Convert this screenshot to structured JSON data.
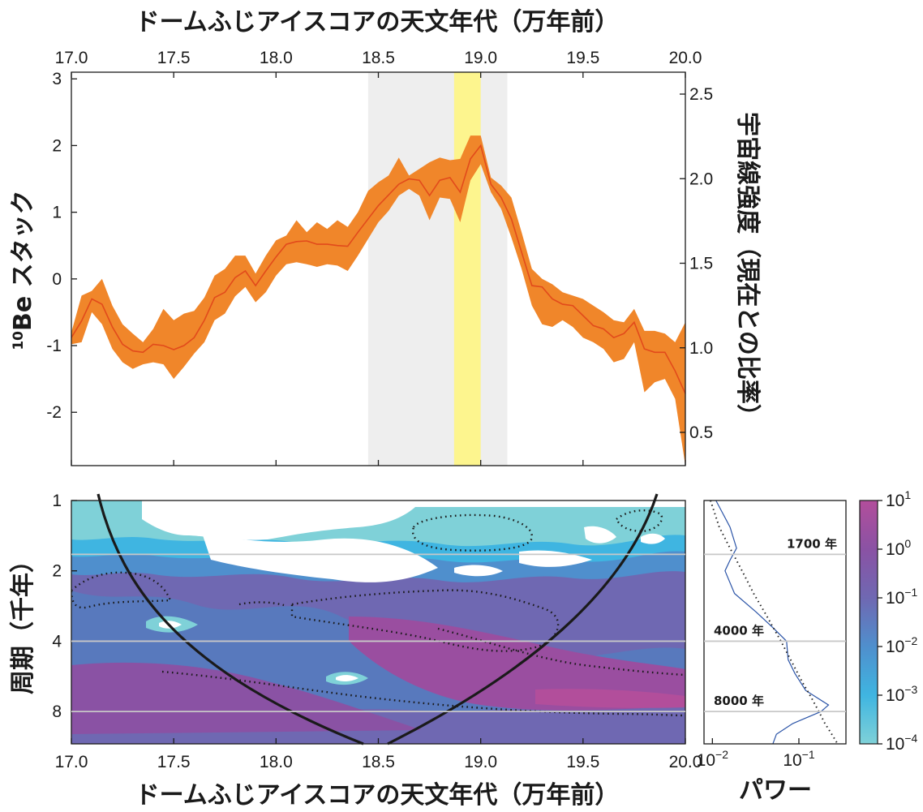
{
  "chart_data": [
    {
      "type": "area",
      "title": "ドームふじアイスコアの天文年代（万年前）",
      "xlabel": "ドームふじアイスコアの天文年代（万年前）",
      "ylabel": "10Be スタック",
      "ylabel_sup": "10",
      "ylabel_main": "Be スタック",
      "y2label": "宇宙線強度（現在との比率）",
      "xlim": [
        17.0,
        20.0
      ],
      "ylim": [
        -2.8,
        3.1
      ],
      "y2lim": [
        0.3,
        2.5
      ],
      "x_ticks": [
        "17.0",
        "17.5",
        "18.0",
        "18.5",
        "19.0",
        "19.5",
        "20.0"
      ],
      "y_ticks": [
        "3",
        "2",
        "1",
        "0",
        "-1",
        "-2"
      ],
      "y2_ticks": [
        "2.5",
        "2.0",
        "1.5",
        "1.0",
        "0.5"
      ],
      "y_tick_values": [
        3,
        2,
        1,
        0,
        -1,
        -2
      ],
      "y2_tick_values": [
        2.5,
        2.0,
        1.5,
        1.0,
        0.5
      ],
      "shaded_gray": [
        18.45,
        19.13
      ],
      "shaded_yellow": [
        18.87,
        19.0
      ],
      "line_color": "#e24a1b",
      "band_color": "#f0862a",
      "x": [
        17.0,
        17.05,
        17.1,
        17.15,
        17.2,
        17.25,
        17.3,
        17.35,
        17.4,
        17.45,
        17.5,
        17.55,
        17.6,
        17.65,
        17.7,
        17.75,
        17.8,
        17.85,
        17.9,
        17.95,
        18.0,
        18.05,
        18.1,
        18.15,
        18.2,
        18.25,
        18.3,
        18.35,
        18.4,
        18.45,
        18.5,
        18.55,
        18.6,
        18.65,
        18.7,
        18.75,
        18.8,
        18.85,
        18.9,
        18.95,
        19.0,
        19.05,
        19.1,
        19.15,
        19.2,
        19.25,
        19.3,
        19.35,
        19.4,
        19.45,
        19.5,
        19.55,
        19.6,
        19.65,
        19.7,
        19.75,
        19.8,
        19.85,
        19.9,
        19.95,
        20.0
      ],
      "series": [
        {
          "values": [
            -0.88,
            -0.63,
            -0.3,
            -0.38,
            -0.72,
            -0.98,
            -1.08,
            -1.1,
            -0.98,
            -1.0,
            -1.06,
            -1.0,
            -0.88,
            -0.62,
            -0.28,
            -0.2,
            0.02,
            0.12,
            -0.1,
            0.12,
            0.33,
            0.52,
            0.56,
            0.57,
            0.52,
            0.52,
            0.5,
            0.49,
            0.7,
            0.9,
            1.1,
            1.26,
            1.42,
            1.5,
            1.48,
            1.25,
            1.48,
            1.52,
            1.3,
            1.8,
            2.0,
            1.42,
            1.22,
            0.9,
            0.4,
            -0.1,
            -0.12,
            -0.3,
            -0.38,
            -0.4,
            -0.55,
            -0.7,
            -0.75,
            -0.88,
            -0.82,
            -0.65,
            -1.05,
            -1.1,
            -1.1,
            -1.38,
            -1.72
          ],
          "lower": [
            -0.98,
            -0.95,
            -0.5,
            -0.68,
            -1.05,
            -1.25,
            -1.35,
            -1.28,
            -1.25,
            -1.28,
            -1.5,
            -1.32,
            -1.12,
            -0.95,
            -0.62,
            -0.52,
            -0.26,
            -0.12,
            -0.35,
            -0.2,
            0.05,
            0.22,
            0.25,
            0.22,
            0.18,
            0.22,
            0.2,
            0.12,
            0.35,
            0.6,
            0.85,
            1.02,
            1.25,
            1.35,
            1.25,
            0.88,
            1.22,
            1.2,
            0.85,
            1.48,
            1.72,
            1.3,
            1.05,
            0.62,
            0.15,
            -0.4,
            -0.68,
            -0.72,
            -0.62,
            -0.72,
            -0.88,
            -0.95,
            -1.05,
            -1.25,
            -1.2,
            -0.95,
            -1.7,
            -1.55,
            -1.5,
            -1.8,
            -2.8
          ],
          "upper": [
            -0.8,
            -0.25,
            -0.18,
            0.0,
            -0.4,
            -0.68,
            -0.82,
            -0.95,
            -0.75,
            -0.45,
            -0.62,
            -0.52,
            -0.48,
            -0.28,
            0.05,
            0.15,
            0.35,
            0.35,
            0.08,
            0.35,
            0.58,
            0.65,
            0.88,
            0.7,
            0.85,
            0.75,
            0.88,
            0.78,
            1.0,
            1.32,
            1.45,
            1.55,
            1.82,
            1.55,
            1.65,
            1.75,
            1.82,
            1.78,
            1.8,
            2.15,
            2.15,
            1.52,
            1.4,
            1.22,
            0.7,
            0.15,
            0.0,
            -0.08,
            -0.2,
            -0.25,
            -0.3,
            -0.4,
            -0.5,
            -0.62,
            -0.65,
            -0.45,
            -0.78,
            -0.78,
            -0.82,
            -0.95,
            -0.65
          ]
        }
      ]
    },
    {
      "type": "heatmap",
      "xlabel": "ドームふじアイスコアの天文年代（万年前）",
      "ylabel": "周期（千年）",
      "xlim": [
        17.0,
        20.0
      ],
      "ylim": [
        1,
        11
      ],
      "y_scale": "log",
      "x_ticks": [
        "17.0",
        "17.5",
        "18.0",
        "18.5",
        "19.0",
        "19.5",
        "20.0"
      ],
      "y_ticks": [
        "1",
        "2",
        "4",
        "8"
      ],
      "y_tick_values": [
        1,
        2,
        4,
        8
      ],
      "period_lines": [
        1.7,
        4.0,
        8.0
      ],
      "period_labels": [
        "1700 年",
        "4000 年",
        "8000 年"
      ],
      "cone_of_influence": true
    },
    {
      "type": "line",
      "xlabel": "パワー",
      "x_scale": "log",
      "xlim": [
        0.008,
        0.35
      ],
      "x_ticks": [
        {
          "base": "10",
          "exp": "−2",
          "v": 0.01
        },
        {
          "base": "10",
          "exp": "−1",
          "v": 0.1
        }
      ],
      "series": [
        {
          "style": "solid",
          "color": "#2b54a7",
          "period": [
            1.0,
            1.3,
            1.6,
            1.8,
            2.0,
            2.5,
            3.0,
            3.5,
            4.0,
            4.8,
            5.5,
            6.5,
            7.5,
            8.0,
            9.0,
            10.0,
            11.0
          ],
          "power": [
            0.011,
            0.016,
            0.019,
            0.016,
            0.014,
            0.018,
            0.032,
            0.05,
            0.072,
            0.075,
            0.09,
            0.12,
            0.22,
            0.18,
            0.085,
            0.055,
            0.05
          ]
        },
        {
          "style": "dotted",
          "color": "#222222",
          "period": [
            1.0,
            1.3,
            1.6,
            2.0,
            2.5,
            3.0,
            4.0,
            5.0,
            6.0,
            7.0,
            8.0,
            9.0,
            10.0,
            11.0
          ],
          "power": [
            0.0095,
            0.012,
            0.016,
            0.022,
            0.03,
            0.04,
            0.062,
            0.085,
            0.11,
            0.14,
            0.17,
            0.2,
            0.24,
            0.28
          ]
        }
      ]
    },
    {
      "type": "colorbar",
      "scale": "log",
      "ticks": [
        {
          "base": "10",
          "exp": "1"
        },
        {
          "base": "10",
          "exp": "0"
        },
        {
          "base": "10",
          "exp": "−1"
        },
        {
          "base": "10",
          "exp": "−2"
        },
        {
          "base": "10",
          "exp": "−3"
        },
        {
          "base": "10",
          "exp": "−4"
        }
      ],
      "colors": [
        "#b24e9b",
        "#8a52a4",
        "#6f68b2",
        "#4f8fcd",
        "#3fb5e1",
        "#7fd1d8"
      ]
    }
  ]
}
